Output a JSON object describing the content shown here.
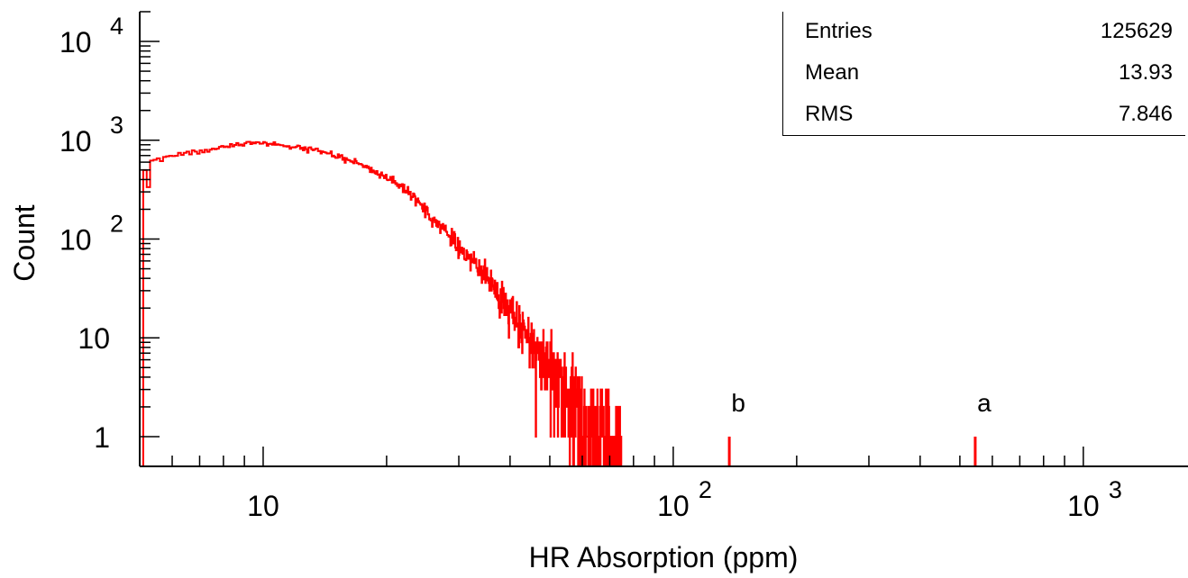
{
  "chart_data": {
    "type": "histogram",
    "xlabel": "HR Absorption (ppm)",
    "ylabel": "Count",
    "x_scale": "log",
    "y_scale": "log",
    "xlim": [
      5,
      1800
    ],
    "ylim": [
      0.5,
      20000
    ],
    "x_tick_labels": [
      {
        "value": 10,
        "base": "10",
        "exp": ""
      },
      {
        "value": 100,
        "base": "10",
        "exp": "2"
      },
      {
        "value": 1000,
        "base": "10",
        "exp": "3"
      }
    ],
    "y_tick_labels": [
      {
        "value": 1,
        "base": "1",
        "exp": ""
      },
      {
        "value": 10,
        "base": "10",
        "exp": ""
      },
      {
        "value": 100,
        "base": "10",
        "exp": "2"
      },
      {
        "value": 1000,
        "base": "10",
        "exp": "3"
      },
      {
        "value": 10000,
        "base": "10",
        "exp": "4"
      }
    ],
    "stats": {
      "entries_label": "Entries",
      "entries": "125629",
      "mean_label": "Mean",
      "mean": "13.93",
      "rms_label": "RMS",
      "rms": "7.846"
    },
    "envelope": [
      [
        5.0,
        380
      ],
      [
        5.3,
        620
      ],
      [
        6,
        690
      ],
      [
        7,
        780
      ],
      [
        8,
        880
      ],
      [
        9,
        930
      ],
      [
        10,
        940
      ],
      [
        11,
        900
      ],
      [
        12,
        860
      ],
      [
        13,
        810
      ],
      [
        14,
        770
      ],
      [
        15,
        700
      ],
      [
        17,
        590
      ],
      [
        20,
        420
      ],
      [
        23,
        280
      ],
      [
        26,
        160
      ],
      [
        30,
        85
      ],
      [
        35,
        42
      ],
      [
        40,
        20
      ],
      [
        45,
        9
      ],
      [
        50,
        4.5
      ],
      [
        55,
        2.6
      ],
      [
        60,
        1.6
      ],
      [
        65,
        1.1
      ],
      [
        70,
        0.8
      ],
      [
        75,
        0.6
      ]
    ],
    "isolated_bins": [
      {
        "x": 137,
        "count": 1,
        "label": "b"
      },
      {
        "x": 545,
        "count": 1,
        "label": "a"
      }
    ],
    "series_color": "#ff0000",
    "legend_position": "top-right"
  }
}
